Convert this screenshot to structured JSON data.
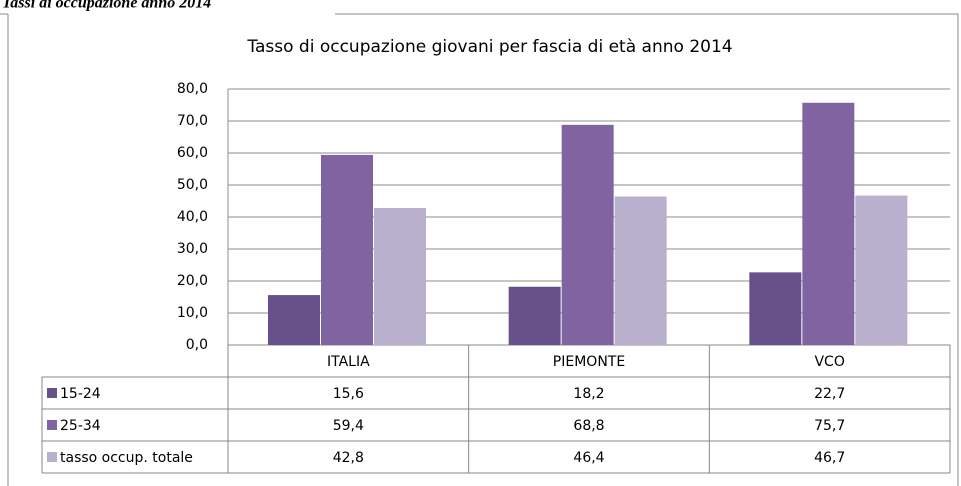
{
  "caption": "Tassi di occupazione anno 2014",
  "chart_data": {
    "type": "bar",
    "title": "Tasso di occupazione giovani per fascia di età anno 2014",
    "categories": [
      "ITALIA",
      "PIEMONTE",
      "VCO"
    ],
    "series": [
      {
        "name": "15-24",
        "color": "#68508a",
        "values": [
          15.6,
          18.2,
          22.7
        ],
        "value_labels": [
          "15,6",
          "18,2",
          "22,7"
        ]
      },
      {
        "name": "25-34",
        "color": "#8064a2",
        "values": [
          59.4,
          68.8,
          75.7
        ],
        "value_labels": [
          "59,4",
          "68,8",
          "75,7"
        ]
      },
      {
        "name": "tasso occup. totale",
        "color": "#b9b0cd",
        "values": [
          42.8,
          46.4,
          46.7
        ],
        "value_labels": [
          "42,8",
          "46,4",
          "46,7"
        ]
      }
    ],
    "ylim": [
      0,
      80
    ],
    "yticks": [
      {
        "value": 0,
        "label": "0,0"
      },
      {
        "value": 10,
        "label": "10,0"
      },
      {
        "value": 20,
        "label": "20,0"
      },
      {
        "value": 30,
        "label": "30,0"
      },
      {
        "value": 40,
        "label": "40,0"
      },
      {
        "value": 50,
        "label": "50,0"
      },
      {
        "value": 60,
        "label": "60,0"
      },
      {
        "value": 70,
        "label": "70,0"
      },
      {
        "value": 80,
        "label": "80,0"
      }
    ],
    "grid": true
  }
}
